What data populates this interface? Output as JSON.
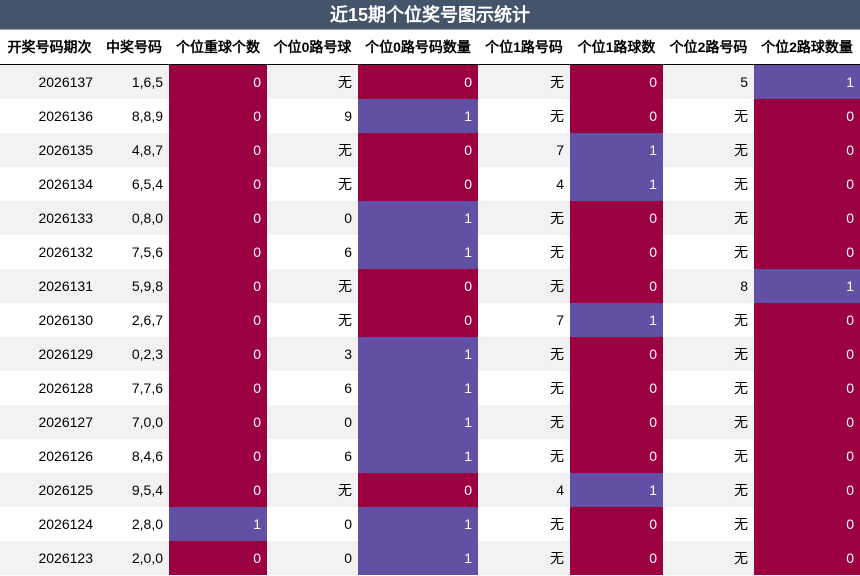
{
  "title": "近15期个位奖号图示统计",
  "columns": [
    "开奖号码期次",
    "中奖号码",
    "个位重球个数",
    "个位0路号球",
    "个位0路号码数量",
    "个位1路号码",
    "个位1路球数",
    "个位2路号码",
    "个位2路球数量"
  ],
  "rows": [
    [
      "2026137",
      "1,6,5",
      "0",
      "无",
      "0",
      "无",
      "0",
      "5",
      "1"
    ],
    [
      "2026136",
      "8,8,9",
      "0",
      "9",
      "1",
      "无",
      "0",
      "无",
      "0"
    ],
    [
      "2026135",
      "4,8,7",
      "0",
      "无",
      "0",
      "7",
      "1",
      "无",
      "0"
    ],
    [
      "2026134",
      "6,5,4",
      "0",
      "无",
      "0",
      "4",
      "1",
      "无",
      "0"
    ],
    [
      "2026133",
      "0,8,0",
      "0",
      "0",
      "1",
      "无",
      "0",
      "无",
      "0"
    ],
    [
      "2026132",
      "7,5,6",
      "0",
      "6",
      "1",
      "无",
      "0",
      "无",
      "0"
    ],
    [
      "2026131",
      "5,9,8",
      "0",
      "无",
      "0",
      "无",
      "0",
      "8",
      "1"
    ],
    [
      "2026130",
      "2,6,7",
      "0",
      "无",
      "0",
      "7",
      "1",
      "无",
      "0"
    ],
    [
      "2026129",
      "0,2,3",
      "0",
      "3",
      "1",
      "无",
      "0",
      "无",
      "0"
    ],
    [
      "2026128",
      "7,7,6",
      "0",
      "6",
      "1",
      "无",
      "0",
      "无",
      "0"
    ],
    [
      "2026127",
      "7,0,0",
      "0",
      "0",
      "1",
      "无",
      "0",
      "无",
      "0"
    ],
    [
      "2026126",
      "8,4,6",
      "0",
      "6",
      "1",
      "无",
      "0",
      "无",
      "0"
    ],
    [
      "2026125",
      "9,5,4",
      "0",
      "无",
      "0",
      "4",
      "1",
      "无",
      "0"
    ],
    [
      "2026124",
      "2,8,0",
      "1",
      "0",
      "1",
      "无",
      "0",
      "无",
      "0"
    ],
    [
      "2026123",
      "2,0,0",
      "0",
      "0",
      "1",
      "无",
      "0",
      "无",
      "0"
    ]
  ],
  "colors": {
    "header_bg": "#44546a",
    "zero_cell": "#9b0041",
    "one_cell": "#6150a4",
    "stripe": "#f2f2f2"
  }
}
